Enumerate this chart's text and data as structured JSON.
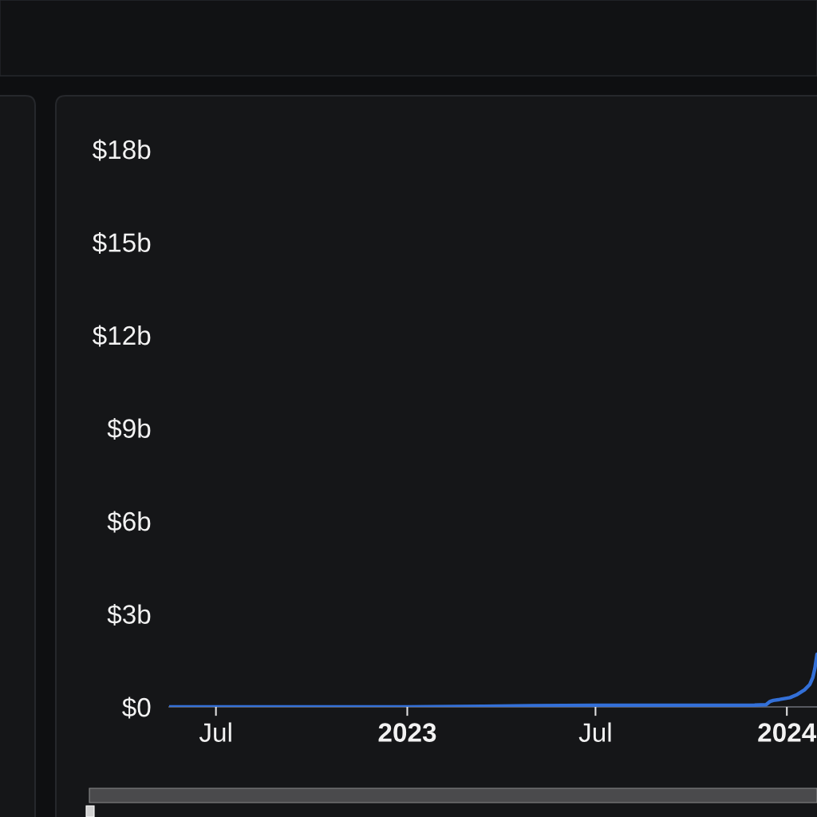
{
  "chart_data": {
    "type": "line",
    "x": [
      "2022-05-17",
      "2022-09-01",
      "2023-01-01",
      "2023-03-15",
      "2023-05-01",
      "2023-07-01",
      "2023-10-01",
      "2023-12-01",
      "2023-12-12",
      "2023-12-16",
      "2023-12-19",
      "2023-12-25",
      "2024-01-04",
      "2024-01-11",
      "2024-01-18",
      "2024-01-23",
      "2024-01-26",
      "2024-01-28",
      "2024-01-30"
    ],
    "series": [
      {
        "color": "#3370d8",
        "values": [
          0,
          0,
          0,
          0.02,
          0.04,
          0.05,
          0.05,
          0.06,
          0.07,
          0.18,
          0.21,
          0.24,
          0.3,
          0.4,
          0.55,
          0.72,
          0.95,
          1.25,
          1.7
        ]
      }
    ],
    "xlim": [
      "2022-05-17",
      "2024-01-30"
    ],
    "xticks": [
      {
        "value": "2022-07-01",
        "label": "Jul"
      },
      {
        "value": "2023-01-01",
        "label": "2023"
      },
      {
        "value": "2023-07-01",
        "label": "Jul"
      },
      {
        "value": "2024-01-01",
        "label": "2024"
      }
    ],
    "ylim": [
      0,
      18
    ],
    "yticks": [
      {
        "value": 0,
        "label": "$0"
      },
      {
        "value": 3,
        "label": "$3b"
      },
      {
        "value": 6,
        "label": "$6b"
      },
      {
        "value": 9,
        "label": "$9b"
      },
      {
        "value": 12,
        "label": "$12b"
      },
      {
        "value": 15,
        "label": "$15b"
      },
      {
        "value": 18,
        "label": "$18b"
      }
    ],
    "grid": false,
    "marker": "none",
    "line_style": "solid"
  }
}
